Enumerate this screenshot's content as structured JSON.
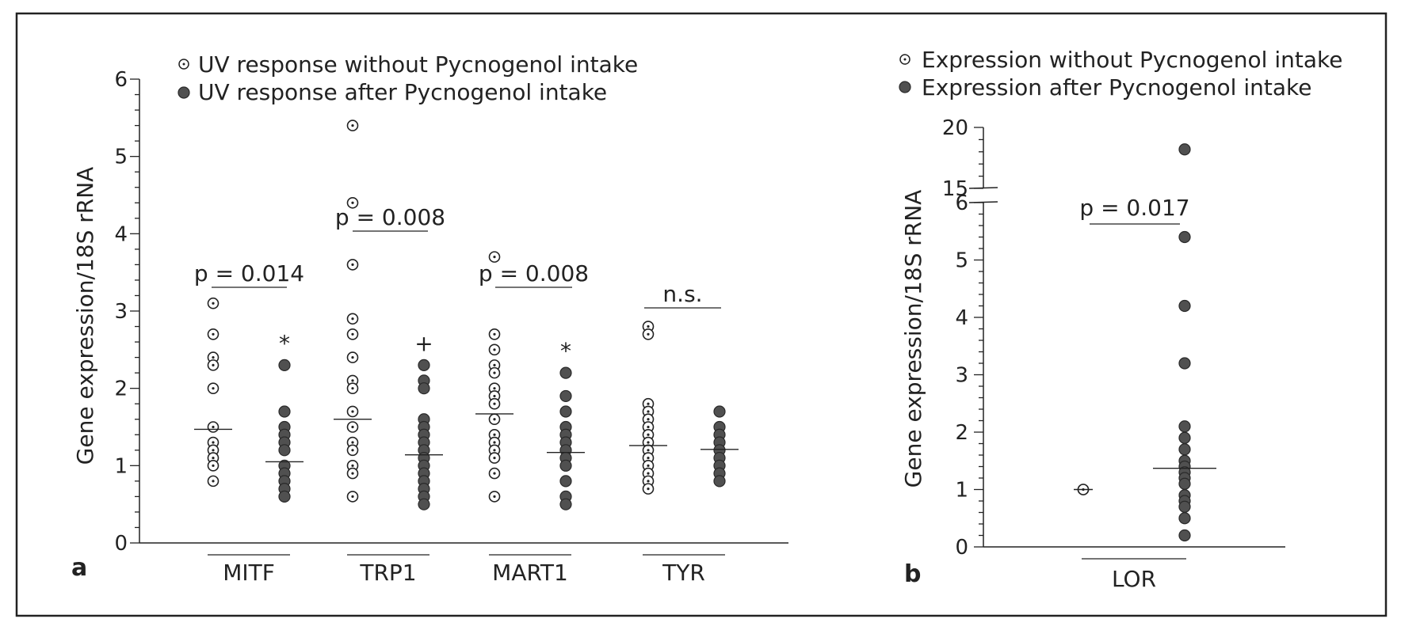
{
  "chart_data": [
    {
      "panel": "a",
      "type": "scatter",
      "ylabel": "Gene expression/18S rRNA",
      "ylim": [
        0,
        6
      ],
      "yticks": [
        0,
        1,
        2,
        3,
        4,
        5,
        6
      ],
      "legend": {
        "placement": "top",
        "entries": [
          {
            "label": "UV response without Pycnogenol intake",
            "marker": "open-dotted-circle"
          },
          {
            "label": "UV response after Pycnogenol intake",
            "marker": "filled-circle"
          }
        ]
      },
      "categories": [
        "MITF",
        "TRP1",
        "MART1",
        "TYR"
      ],
      "series": [
        {
          "name": "UV response without Pycnogenol intake",
          "values": [
            [
              3.1,
              2.7,
              2.4,
              2.3,
              2.0,
              1.5,
              1.3,
              1.2,
              1.1,
              1.0,
              0.8
            ],
            [
              5.4,
              4.4,
              3.6,
              2.9,
              2.7,
              2.4,
              2.1,
              2.0,
              1.7,
              1.5,
              1.3,
              1.2,
              1.0,
              0.9,
              0.6
            ],
            [
              3.7,
              2.7,
              2.5,
              2.3,
              2.2,
              2.0,
              1.9,
              1.8,
              1.6,
              1.4,
              1.3,
              1.2,
              1.1,
              0.9,
              0.6
            ],
            [
              2.8,
              2.7,
              1.8,
              1.7,
              1.6,
              1.5,
              1.4,
              1.3,
              1.2,
              1.1,
              1.0,
              0.9,
              0.8,
              0.7
            ]
          ],
          "medians": [
            1.47,
            1.6,
            1.67,
            1.26
          ]
        },
        {
          "name": "UV response after Pycnogenol intake",
          "values": [
            [
              2.3,
              1.7,
              1.5,
              1.4,
              1.3,
              1.2,
              1.0,
              0.9,
              0.8,
              0.7,
              0.6
            ],
            [
              2.3,
              2.1,
              2.0,
              1.6,
              1.5,
              1.4,
              1.3,
              1.2,
              1.1,
              1.0,
              0.9,
              0.8,
              0.7,
              0.6,
              0.5
            ],
            [
              2.2,
              1.9,
              1.7,
              1.5,
              1.4,
              1.3,
              1.2,
              1.1,
              1.0,
              0.8,
              0.6,
              0.5
            ],
            [
              1.7,
              1.5,
              1.4,
              1.3,
              1.2,
              1.1,
              1.0,
              0.9,
              0.8
            ]
          ],
          "medians": [
            1.05,
            1.14,
            1.17,
            1.21
          ],
          "markers": [
            "*",
            "+",
            "*",
            ""
          ]
        }
      ],
      "annotations": [
        {
          "text": "p = 0.014",
          "category": "MITF"
        },
        {
          "text": "p = 0.008",
          "category": "TRP1"
        },
        {
          "text": "p = 0.008",
          "category": "MART1"
        },
        {
          "text": "n.s.",
          "category": "TYR"
        }
      ],
      "panel_label": "a"
    },
    {
      "panel": "b",
      "type": "scatter",
      "ylabel": "Gene expression/18S rRNA",
      "ylim": [
        0,
        20
      ],
      "axis_break": [
        6,
        15
      ],
      "yticks": [
        0,
        1,
        2,
        3,
        4,
        5,
        6,
        15,
        20
      ],
      "legend": {
        "placement": "top",
        "entries": [
          {
            "label": "Expression without Pycnogenol intake",
            "marker": "open-dotted-circle"
          },
          {
            "label": "Expression after Pycnogenol intake",
            "marker": "filled-circle"
          }
        ]
      },
      "categories": [
        "LOR"
      ],
      "series": [
        {
          "name": "Expression without Pycnogenol intake",
          "values": [
            1.0,
            1.0
          ],
          "median": 1.0
        },
        {
          "name": "Expression after Pycnogenol intake",
          "values": [
            18.2,
            5.4,
            4.2,
            3.2,
            2.1,
            1.9,
            1.7,
            1.5,
            1.4,
            1.3,
            1.2,
            1.1,
            0.9,
            0.8,
            0.7,
            0.5,
            0.2
          ],
          "median": 1.37
        }
      ],
      "annotations": [
        {
          "text": "p = 0.017",
          "category": "LOR"
        }
      ],
      "panel_label": "b"
    }
  ]
}
